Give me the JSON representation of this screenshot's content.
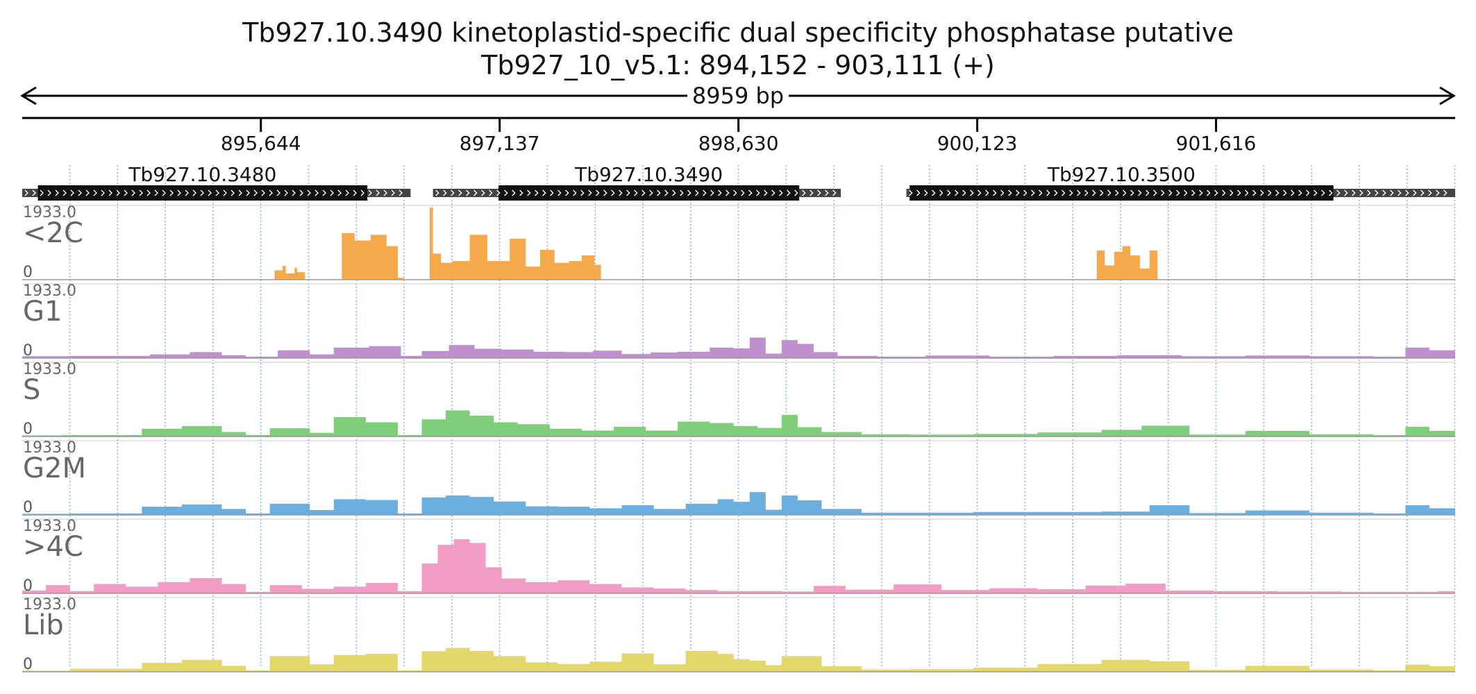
{
  "header": {
    "title": "Tb927.10.3490  kinetoplastid-specific dual specificity phosphatase  putative",
    "subtitle": "Tb927_10_v5.1: 894,152 - 903,111 (+)",
    "span_label": "8959 bp"
  },
  "chart_data": {
    "type": "area",
    "x_range": [
      894152,
      903111
    ],
    "ticks": [
      "895,644",
      "897,137",
      "898,630",
      "900,123",
      "901,616"
    ],
    "tick_values": [
      895644,
      897137,
      898630,
      900123,
      901616
    ],
    "genes": [
      {
        "name": "Tb927.10.3480",
        "utr_start": 894152,
        "cds_start": 894250,
        "cds_end": 896310,
        "utr_end": 896580
      },
      {
        "name": "Tb927.10.3490",
        "utr_start": 896720,
        "cds_start": 897130,
        "cds_end": 899010,
        "utr_end": 899270
      },
      {
        "name": "Tb927.10.3500",
        "utr_start": 899680,
        "cds_start": 899700,
        "cds_end": 902350,
        "utr_end": 903111
      }
    ],
    "tracks": [
      {
        "name": "<2C",
        "ymax": "1933.0",
        "ymin": "0",
        "color": "#f5a94a",
        "segments": [
          {
            "x": [
              895730,
              895780,
              895800,
              895855,
              895870,
              895920
            ],
            "y": [
              250,
              370,
              170,
              320,
              200,
              70
            ]
          },
          {
            "x": [
              896150,
              896230,
              896330,
              896430,
              896500,
              896540
            ],
            "y": [
              1250,
              1050,
              1200,
              900,
              50,
              1150
            ]
          },
          {
            "x": [
              896700,
              896720,
              896770,
              896840,
              896950,
              897060,
              897200,
              897300,
              897390,
              897480,
              897570,
              897650,
              897730,
              897770
            ],
            "y": [
              1930,
              700,
              450,
              500,
              1200,
              500,
              1100,
              350,
              800,
              450,
              500,
              650,
              400,
              1800
            ]
          },
          {
            "x": [
              900870,
              900920,
              900980,
              901030,
              901080,
              901140,
              901200,
              901250
            ],
            "y": [
              780,
              380,
              750,
              900,
              650,
              300,
              780,
              60
            ]
          }
        ]
      },
      {
        "name": "G1",
        "ymax": "1933.0",
        "ymin": "0",
        "color": "#bf8fcf",
        "segments": [
          {
            "x": [
              894152,
              894450,
              894950,
              895200,
              895400,
              895550,
              895750,
              895950,
              896100,
              896320,
              896520,
              896650,
              896820,
              896980,
              897150,
              897350,
              897550,
              897720,
              897900,
              898080,
              898250,
              898450,
              898600,
              898700,
              898800,
              898900,
              899000,
              899100,
              899250,
              899500,
              899800,
              900200,
              900600,
              901000,
              901400,
              901800,
              902200,
              902600,
              902800,
              902950,
              903111
            ],
            "y": [
              50,
              60,
              100,
              160,
              80,
              40,
              210,
              100,
              280,
              320,
              60,
              190,
              350,
              250,
              230,
              170,
              160,
              200,
              110,
              150,
              170,
              280,
              260,
              550,
              120,
              480,
              380,
              160,
              60,
              40,
              70,
              40,
              60,
              80,
              50,
              70,
              50,
              40,
              280,
              210,
              130
            ]
          }
        ]
      },
      {
        "name": "S",
        "ymax": "1933.0",
        "ymin": "0",
        "color": "#7fcf7a",
        "segments": [
          {
            "x": [
              894152,
              894400,
              894900,
              895150,
              895400,
              895550,
              895700,
              895950,
              896100,
              896300,
              896500,
              896650,
              896800,
              896950,
              897100,
              897250,
              897450,
              897650,
              897850,
              898050,
              898250,
              898450,
              898600,
              898750,
              898900,
              899000,
              899150,
              899400,
              899700,
              900100,
              900500,
              900900,
              901150,
              901450,
              901800,
              902200,
              902600,
              902800,
              902950,
              903111
            ],
            "y": [
              30,
              40,
              210,
              280,
              120,
              40,
              220,
              100,
              520,
              380,
              40,
              460,
              700,
              560,
              380,
              330,
              210,
              160,
              260,
              160,
              400,
              360,
              280,
              230,
              580,
              250,
              120,
              60,
              50,
              70,
              110,
              180,
              290,
              50,
              150,
              60,
              40,
              260,
              150,
              240
            ]
          }
        ]
      },
      {
        "name": "G2M",
        "ymax": "1933.0",
        "ymin": "0",
        "color": "#6baee0",
        "segments": [
          {
            "x": [
              894152,
              894450,
              894900,
              895150,
              895400,
              895550,
              895700,
              895950,
              896100,
              896300,
              896500,
              896650,
              896800,
              896950,
              897100,
              897300,
              897500,
              897700,
              897900,
              898100,
              898300,
              898500,
              898600,
              898700,
              898800,
              898900,
              899000,
              899150,
              899400,
              899700,
              900100,
              900500,
              900900,
              901200,
              901450,
              901800,
              902200,
              902600,
              902800,
              902950,
              903111
            ],
            "y": [
              30,
              40,
              220,
              280,
              160,
              40,
              300,
              130,
              420,
              400,
              40,
              470,
              520,
              480,
              360,
              230,
              220,
              180,
              260,
              160,
              300,
              420,
              350,
              610,
              140,
              520,
              390,
              160,
              60,
              60,
              80,
              80,
              90,
              260,
              50,
              120,
              60,
              40,
              260,
              180,
              230
            ]
          }
        ]
      },
      {
        "name": ">4C",
        "ymax": "1933.0",
        "ymin": "0",
        "color": "#f29cc3",
        "segments": [
          {
            "x": [
              894152,
              894300,
              894450,
              894600,
              894800,
              895000,
              895200,
              895400,
              895550,
              895700,
              895900,
              896100,
              896300,
              896500,
              896650,
              896750,
              896850,
              896950,
              897050,
              897150,
              897300,
              897500,
              897700,
              897900,
              898100,
              898300,
              898500,
              898700,
              898900,
              899100,
              899300,
              899600,
              899900,
              900200,
              900500,
              900800,
              901050,
              901300,
              901600,
              902000,
              902400,
              902800,
              903000,
              903111
            ],
            "y": [
              80,
              220,
              60,
              250,
              180,
              300,
              410,
              250,
              40,
              220,
              120,
              180,
              280,
              60,
              800,
              1300,
              1450,
              1350,
              700,
              400,
              300,
              350,
              250,
              160,
              130,
              90,
              60,
              60,
              50,
              200,
              100,
              240,
              90,
              140,
              110,
              210,
              260,
              80,
              60,
              50,
              40,
              40,
              60,
              150
            ]
          }
        ]
      },
      {
        "name": "Lib",
        "ymax": "1933.0",
        "ymin": "0",
        "color": "#e3d76a",
        "segments": [
          {
            "x": [
              894152,
              894450,
              894900,
              895150,
              895400,
              895550,
              895700,
              895950,
              896100,
              896300,
              896500,
              896650,
              896800,
              896950,
              897100,
              897300,
              897500,
              897700,
              897900,
              898100,
              898300,
              898500,
              898600,
              898700,
              898800,
              898900,
              899000,
              899150,
              899400,
              899700,
              900100,
              900500,
              900900,
              901200,
              901450,
              901800,
              902200,
              902600,
              902800,
              902950,
              903111
            ],
            "y": [
              30,
              80,
              240,
              320,
              160,
              40,
              420,
              200,
              450,
              480,
              40,
              550,
              640,
              560,
              420,
              250,
              210,
              270,
              490,
              200,
              560,
              480,
              340,
              300,
              180,
              420,
              420,
              150,
              60,
              70,
              110,
              210,
              320,
              280,
              50,
              160,
              60,
              40,
              190,
              150,
              210
            ]
          }
        ]
      }
    ]
  }
}
